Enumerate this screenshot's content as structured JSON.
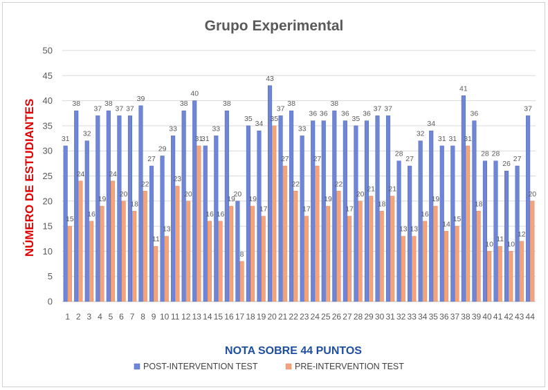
{
  "chart_data": {
    "type": "bar",
    "title": "Grupo Experimental",
    "xlabel": "NOTA SOBRE 44 PUNTOS",
    "ylabel": "NÚMERO DE ESTUDIANTES",
    "ylim": [
      0,
      50
    ],
    "yticks": [
      0,
      5,
      10,
      15,
      20,
      25,
      30,
      35,
      40,
      45,
      50
    ],
    "grid": true,
    "legend_position": "bottom",
    "categories": [
      "1",
      "2",
      "3",
      "4",
      "5",
      "6",
      "7",
      "8",
      "9",
      "10",
      "11",
      "12",
      "13",
      "14",
      "15",
      "16",
      "17",
      "18",
      "19",
      "20",
      "21",
      "22",
      "23",
      "24",
      "25",
      "26",
      "27",
      "28",
      "29",
      "30",
      "31",
      "32",
      "33",
      "34",
      "35",
      "36",
      "37",
      "38",
      "39",
      "40",
      "41",
      "42",
      "43",
      "44"
    ],
    "series": [
      {
        "name": "POST-INTERVENTION TEST",
        "color": "#6f86d6",
        "values": [
          31,
          38,
          32,
          37,
          38,
          37,
          37,
          39,
          27,
          29,
          33,
          38,
          40,
          31,
          33,
          38,
          20,
          35,
          34,
          43,
          37,
          38,
          33,
          36,
          36,
          38,
          36,
          35,
          36,
          37,
          37,
          28,
          27,
          32,
          34,
          31,
          31,
          41,
          36,
          28,
          28,
          26,
          27,
          37
        ]
      },
      {
        "name": "PRE-INTERVENTION TEST",
        "color": "#f4a37c",
        "values": [
          15,
          24,
          16,
          19,
          24,
          20,
          18,
          22,
          11,
          13,
          23,
          20,
          31,
          16,
          16,
          19,
          8,
          19,
          17,
          35,
          27,
          22,
          17,
          27,
          19,
          22,
          17,
          20,
          21,
          18,
          21,
          13,
          13,
          16,
          19,
          14,
          15,
          31,
          18,
          10,
          11,
          10,
          12,
          20
        ]
      }
    ]
  }
}
